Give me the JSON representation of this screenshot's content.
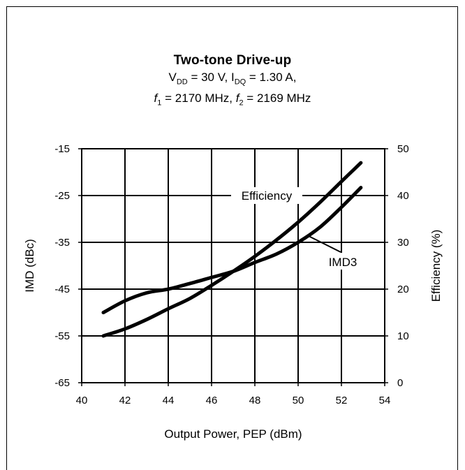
{
  "chart_data": {
    "type": "line",
    "title": "Two-tone Drive-up",
    "subtitle_line1": {
      "a": "V",
      "a_sub": "DD",
      "b": " = 30 V, I",
      "b_sub": "DQ",
      "c": " = 1.30 A,"
    },
    "subtitle_line2": {
      "a": "f",
      "a_sub": "1",
      "b": " = 2170 MHz, ",
      "c": "f",
      "c_sub": "2",
      "d": " = 2169 MHz"
    },
    "xlabel": "Output Power, PEP (dBm)",
    "ylabel_left": "IMD (dBc)",
    "ylabel_right": "Efficiency (%)",
    "xlim": [
      40,
      54
    ],
    "ylim_left": [
      -65,
      -15
    ],
    "ylim_right": [
      0,
      50
    ],
    "x_ticks": [
      "40",
      "42",
      "44",
      "46",
      "48",
      "50",
      "52",
      "54"
    ],
    "y_left_ticks": [
      "-15",
      "-25",
      "-35",
      "-45",
      "-55",
      "-65"
    ],
    "y_right_ticks": [
      "50",
      "40",
      "30",
      "20",
      "10",
      "0"
    ],
    "grid": true,
    "series": [
      {
        "name": "Efficiency",
        "axis": "right",
        "x": [
          41.0,
          42.0,
          43.0,
          44.0,
          45.0,
          46.0,
          47.0,
          48.0,
          49.0,
          50.0,
          51.0,
          52.0,
          52.9
        ],
        "y": [
          10.0,
          11.5,
          13.5,
          15.8,
          18.0,
          20.8,
          23.8,
          27.0,
          30.5,
          34.3,
          38.5,
          43.0,
          47.0
        ]
      },
      {
        "name": "IMD3",
        "axis": "left",
        "x": [
          41.0,
          42.0,
          43.0,
          44.0,
          45.0,
          46.0,
          47.0,
          48.0,
          49.0,
          50.0,
          51.0,
          52.0,
          52.9
        ],
        "y": [
          -50.0,
          -47.5,
          -45.8,
          -45.0,
          -43.8,
          -42.5,
          -41.2,
          -39.3,
          -37.5,
          -35.0,
          -31.8,
          -27.5,
          -23.3
        ]
      }
    ],
    "annotations": [
      "Efficiency",
      "IMD3"
    ]
  }
}
